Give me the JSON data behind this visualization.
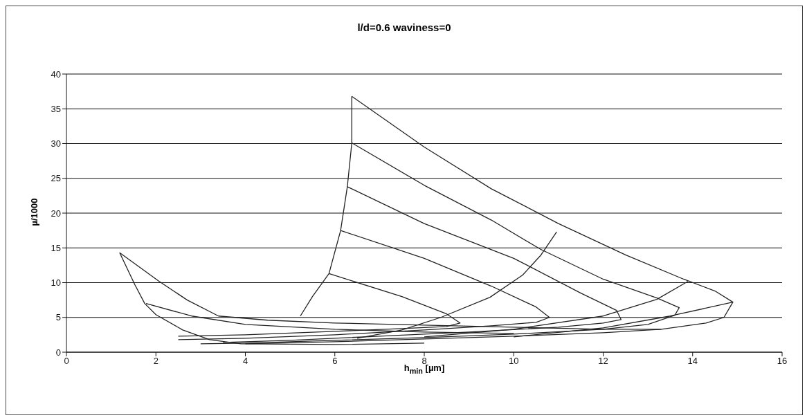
{
  "chart_data": {
    "type": "line",
    "title": "l/d=0.6 waviness=0",
    "xlabel": "h$_{min}$ [µm]",
    "ylabel": "µ/1000",
    "xlim": [
      0,
      16
    ],
    "xticks": [
      0,
      2,
      4,
      6,
      8,
      10,
      12,
      14,
      16
    ],
    "ylim": [
      0,
      40
    ],
    "yticks": [
      0,
      5,
      10,
      15,
      20,
      25,
      30,
      35,
      40
    ],
    "grid": "y",
    "marker": "none",
    "line_style": "solid",
    "series": [
      {
        "color": "#222222",
        "x": [
          6.38,
          8,
          9.5,
          11,
          12.5,
          13.8,
          14.5,
          14.9,
          14.7,
          14.3,
          13.3,
          12,
          10,
          8,
          6,
          4
        ],
        "values": [
          36.8,
          29.5,
          23.5,
          18.5,
          14,
          10.5,
          8.8,
          7.2,
          5,
          4.2,
          3.3,
          2.8,
          2.3,
          1.9,
          1.5,
          1.2
        ]
      },
      {
        "color": "#222222",
        "x": [
          6.38,
          8,
          9.5,
          10.6,
          12,
          13.2,
          13.7,
          13.6,
          13,
          12,
          10,
          8,
          6,
          4,
          3
        ],
        "values": [
          30.1,
          24,
          19,
          14.8,
          10.5,
          7.8,
          6.4,
          5.3,
          4,
          3.3,
          2.6,
          2.1,
          1.7,
          1.3,
          1.2
        ]
      },
      {
        "color": "#222222",
        "x": [
          6.28,
          8,
          10,
          11.5,
          12.3,
          12.4,
          12,
          11,
          9,
          7,
          5,
          3.5
        ],
        "values": [
          23.8,
          18.5,
          13.5,
          8.5,
          6,
          4.7,
          4.2,
          3.6,
          2.9,
          2.3,
          1.7,
          1.4
        ]
      },
      {
        "color": "#222222",
        "x": [
          6.13,
          8,
          9.5,
          10.5,
          10.8,
          10.5,
          9.5,
          8,
          6,
          4,
          2.5
        ],
        "values": [
          17.5,
          13.5,
          9.5,
          6.5,
          5,
          4.3,
          3.8,
          3.2,
          2.5,
          2,
          1.8
        ]
      },
      {
        "color": "#222222",
        "x": [
          5.87,
          7.5,
          8.5,
          8.8,
          8.5,
          7.5,
          6,
          4,
          2.5
        ],
        "values": [
          11.3,
          8,
          5.5,
          4.2,
          3.7,
          3.4,
          3,
          2.5,
          2.3
        ]
      },
      {
        "color": "#222222",
        "x": [
          5.23,
          5.5,
          5.87,
          6.13,
          6.28,
          6.38,
          6.38
        ],
        "values": [
          5.2,
          8,
          11.3,
          17.5,
          23.8,
          30.1,
          36.8
        ]
      },
      {
        "color": "#222222",
        "x": [
          6.5,
          7.5,
          8.37,
          9.47,
          10.2,
          10.6,
          10.96
        ],
        "values": [
          2,
          3.2,
          5,
          7.9,
          11.1,
          13.9,
          17.3
        ]
      },
      {
        "color": "#222222",
        "x": [
          8,
          10,
          12,
          13.2,
          13.9
        ],
        "values": [
          2.2,
          3.3,
          5.2,
          7.6,
          10.2
        ]
      },
      {
        "color": "#222222",
        "x": [
          10,
          12,
          13.5,
          14.9
        ],
        "values": [
          2.2,
          3.5,
          5.2,
          7.2
        ]
      },
      {
        "color": "#222222",
        "x": [
          1.19,
          2.07,
          2.7,
          3.4,
          4.5,
          6,
          8,
          10,
          12,
          13.3
        ],
        "values": [
          14.3,
          10.2,
          7.5,
          5.2,
          4.6,
          4.2,
          3.9,
          3.6,
          3.3,
          3.3
        ]
      },
      {
        "color": "#222222",
        "x": [
          1.19,
          1.53,
          1.75,
          2,
          2.6,
          3.2,
          3.9,
          6,
          8
        ],
        "values": [
          14.3,
          9.7,
          7,
          5.4,
          3.2,
          1.8,
          1.2,
          1.1,
          1.3
        ]
      },
      {
        "color": "#222222",
        "x": [
          1.78,
          2.8,
          4,
          6,
          8,
          10
        ],
        "values": [
          7,
          5.2,
          4,
          3.3,
          2.9,
          2.7
        ]
      }
    ]
  }
}
